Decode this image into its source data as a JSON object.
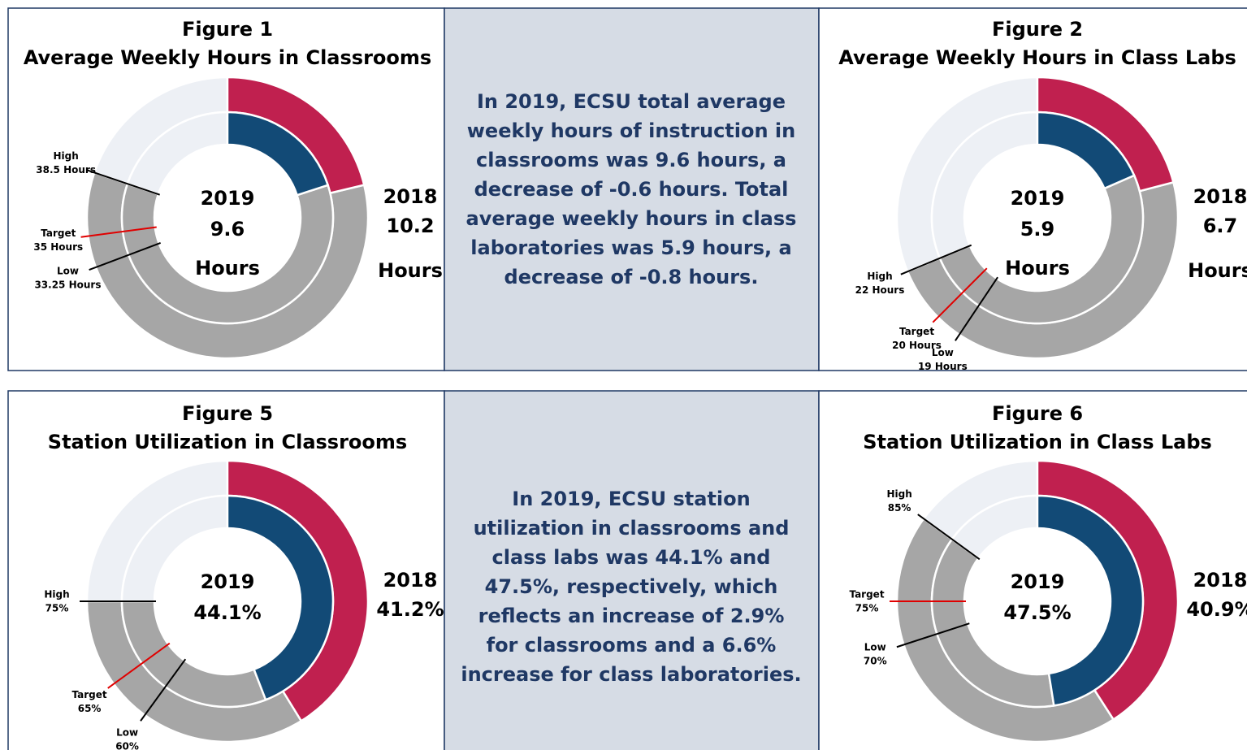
{
  "chart_data": [
    {
      "type": "donut",
      "title": "Figure 1",
      "subtitle": "Average Weekly Hours in Classrooms",
      "unit": "Hours",
      "ylim": [
        0,
        48
      ],
      "series": [
        {
          "name": "2018",
          "color": "#c0204f",
          "values": [
            10.2
          ]
        },
        {
          "name": "2019",
          "color": "#124a76",
          "values": [
            9.6
          ]
        }
      ],
      "reference_lines": [
        {
          "name": "High",
          "label": "38.5 Hours",
          "value": 38.5
        },
        {
          "name": "Target",
          "label": "35 Hours",
          "value": 35
        },
        {
          "name": "Low",
          "label": "33.25 Hours",
          "value": 33.25
        }
      ]
    },
    {
      "type": "donut",
      "title": "Figure 2",
      "subtitle": "Average Weekly Hours in Class Labs",
      "unit": "Hours",
      "ylim": [
        0,
        32
      ],
      "series": [
        {
          "name": "2018",
          "color": "#c0204f",
          "values": [
            6.7
          ]
        },
        {
          "name": "2019",
          "color": "#124a76",
          "values": [
            5.9
          ]
        }
      ],
      "reference_lines": [
        {
          "name": "High",
          "label": "22 Hours",
          "value": 22
        },
        {
          "name": "Target",
          "label": "20 Hours",
          "value": 20
        },
        {
          "name": "Low",
          "label": "19 Hours",
          "value": 19
        }
      ]
    },
    {
      "type": "donut",
      "title": "Figure 5",
      "subtitle": "Station Utilization in Classrooms",
      "ylim": [
        0,
        100
      ],
      "series": [
        {
          "name": "2018",
          "color": "#c0204f",
          "values": [
            41.2
          ],
          "value_labels": [
            "41.2%"
          ]
        },
        {
          "name": "2019",
          "color": "#124a76",
          "values": [
            44.1
          ],
          "value_labels": [
            "44.1%"
          ]
        }
      ],
      "reference_lines": [
        {
          "name": "High",
          "label": "75%",
          "value": 75
        },
        {
          "name": "Target",
          "label": "65%",
          "value": 65
        },
        {
          "name": "Low",
          "label": "60%",
          "value": 60
        }
      ]
    },
    {
      "type": "donut",
      "title": "Figure 6",
      "subtitle": "Station Utilization in Class Labs",
      "ylim": [
        0,
        100
      ],
      "series": [
        {
          "name": "2018",
          "color": "#c0204f",
          "values": [
            40.9
          ],
          "value_labels": [
            "40.9%"
          ]
        },
        {
          "name": "2019",
          "color": "#124a76",
          "values": [
            47.5
          ],
          "value_labels": [
            "47.5%"
          ]
        }
      ],
      "reference_lines": [
        {
          "name": "High",
          "label": "85%",
          "value": 85
        },
        {
          "name": "Target",
          "label": "75%",
          "value": 75
        },
        {
          "name": "Low",
          "label": "70%",
          "value": 70
        }
      ]
    }
  ],
  "notes": [
    "In 2019, ECSU total average weekly hours of instruction in classrooms was 9.6 hours, a decrease of -0.6 hours. Total average weekly hours in class laboratories was 5.9 hours, a decrease of -0.8 hours.",
    "In 2019, ECSU station utilization in classrooms and class labs was 44.1% and 47.5%, respectively, which reflects an increase of 2.9% for classrooms and a 6.6% increase for class laboratories."
  ]
}
